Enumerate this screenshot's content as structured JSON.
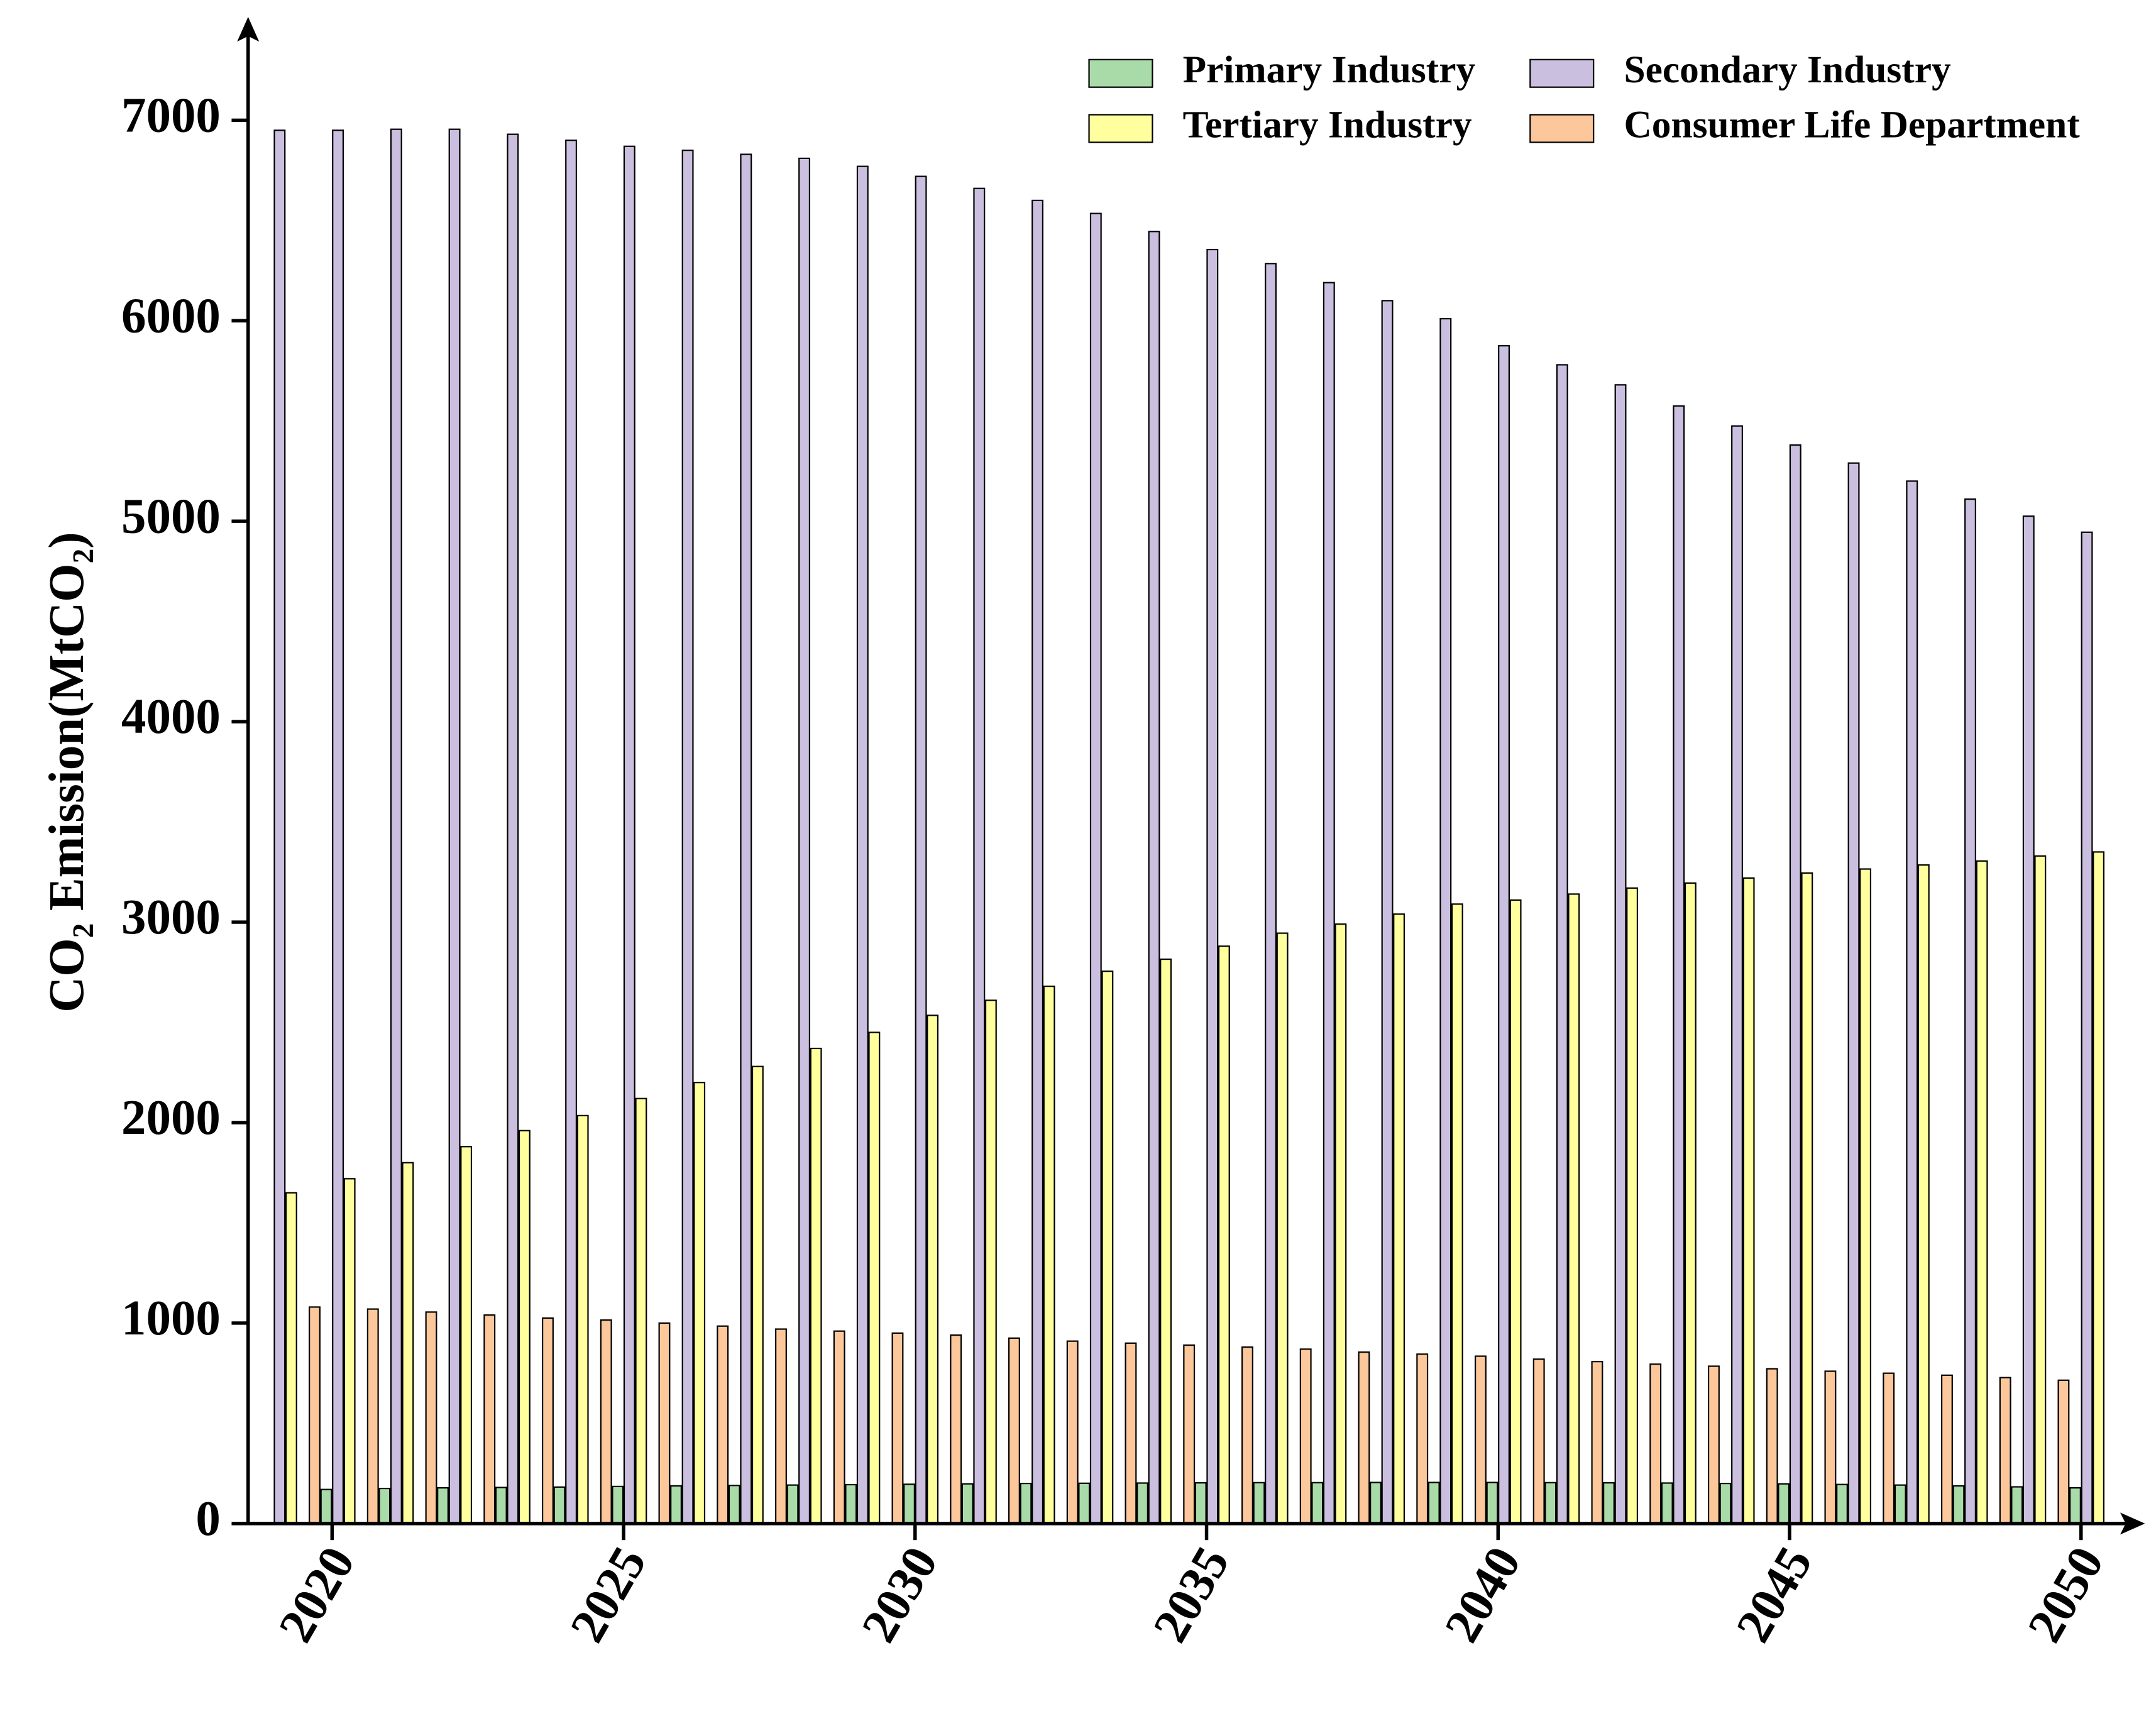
{
  "chart_data": {
    "type": "bar",
    "ylabel": "CO₂ Emission(MtCO₂)",
    "x": [
      2019,
      2020,
      2021,
      2022,
      2023,
      2024,
      2025,
      2026,
      2027,
      2028,
      2029,
      2030,
      2031,
      2032,
      2033,
      2034,
      2035,
      2036,
      2037,
      2038,
      2039,
      2040,
      2041,
      2042,
      2043,
      2044,
      2045,
      2046,
      2047,
      2048,
      2049,
      2050
    ],
    "series": [
      {
        "name": "Primary Industry",
        "color": "#a8dba8",
        "values": [
          null,
          170,
          175,
          178,
          180,
          182,
          185,
          188,
          190,
          192,
          194,
          196,
          198,
          200,
          201,
          202,
          203,
          204,
          204,
          205,
          205,
          205,
          204,
          203,
          202,
          200,
          198,
          195,
          192,
          188,
          183,
          178
        ]
      },
      {
        "name": "Secondary Industry",
        "color": "#cbbfe0",
        "values": [
          6950,
          6950,
          6955,
          6955,
          6930,
          6900,
          6870,
          6850,
          6830,
          6810,
          6770,
          6720,
          6660,
          6600,
          6535,
          6445,
          6355,
          6285,
          6190,
          6100,
          6010,
          5875,
          5780,
          5680,
          5575,
          5475,
          5380,
          5290,
          5200,
          5110,
          5025,
          4945
        ]
      },
      {
        "name": "Tertiary Industry",
        "color": "#ffff9e",
        "values": [
          1650,
          1720,
          1800,
          1880,
          1960,
          2035,
          2120,
          2200,
          2280,
          2370,
          2450,
          2535,
          2610,
          2680,
          2755,
          2815,
          2880,
          2945,
          2990,
          3040,
          3090,
          3110,
          3140,
          3170,
          3195,
          3220,
          3245,
          3265,
          3285,
          3305,
          3330,
          3350
        ]
      },
      {
        "name": "Consumer Life Department",
        "color": "#fcc89b",
        "values": [
          null,
          1080,
          1070,
          1055,
          1040,
          1025,
          1015,
          1000,
          985,
          970,
          960,
          950,
          940,
          925,
          910,
          900,
          890,
          880,
          870,
          855,
          845,
          835,
          820,
          808,
          795,
          785,
          772,
          760,
          750,
          740,
          728,
          715
        ]
      }
    ],
    "xlim": [
      2018.56,
      2050.6
    ],
    "xticks": [
      2020,
      2025,
      2030,
      2035,
      2040,
      2045,
      2050
    ],
    "ylim": [
      0,
      7000
    ],
    "yticks": [
      0,
      1000,
      2000,
      3000,
      4000,
      5000,
      6000,
      7000
    ],
    "legend": "upper right"
  }
}
